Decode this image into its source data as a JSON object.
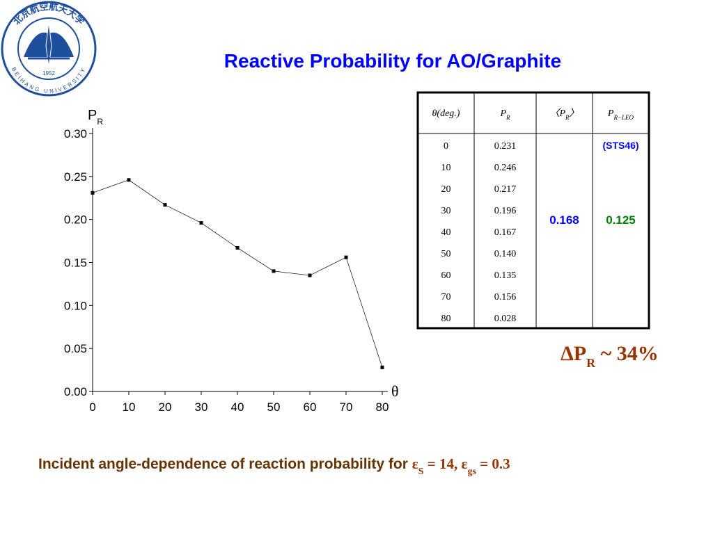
{
  "title": "Reactive Probability for  AO/Graphite",
  "logo": {
    "name_cn": "北京航空航天大学",
    "name_en": "BEIHANG UNIVERSITY",
    "year": "1952"
  },
  "chart_data": {
    "type": "line",
    "y_label": [
      {
        "text": "P"
      },
      {
        "sub": "R"
      }
    ],
    "x_label": "θ",
    "x": [
      0,
      10,
      20,
      30,
      40,
      50,
      60,
      70,
      80
    ],
    "values": [
      0.231,
      0.246,
      0.217,
      0.196,
      0.167,
      0.14,
      0.135,
      0.156,
      0.028
    ],
    "color": "#000000",
    "xlim": [
      0,
      80
    ],
    "xticks": [
      0,
      10,
      20,
      30,
      40,
      50,
      60,
      70,
      80
    ],
    "ylim": [
      0,
      0.3
    ],
    "yticks": [
      {
        "value": 0,
        "label": "0.00"
      },
      {
        "value": 0.05,
        "label": "0.05"
      },
      {
        "value": 0.1,
        "label": "0.10"
      },
      {
        "value": 0.15,
        "label": "0.15"
      },
      {
        "value": 0.2,
        "label": "0.20"
      },
      {
        "value": 0.25,
        "label": "0.25"
      },
      {
        "value": 0.3,
        "label": "0.30"
      }
    ]
  },
  "table": {
    "header": [
      [
        {
          "text": "θ"
        },
        {
          "text": "(deg.)"
        }
      ],
      [
        {
          "text": "P"
        },
        {
          "sub": "R"
        }
      ],
      [
        {
          "text": "〈P"
        },
        {
          "sub": "R"
        },
        {
          "text": "〉"
        }
      ],
      [
        {
          "text": "P"
        },
        {
          "sub": "R−LEO"
        }
      ]
    ],
    "rows": [
      [
        "0",
        "0.231"
      ],
      [
        "10",
        "0.246"
      ],
      [
        "20",
        "0.217"
      ],
      [
        "30",
        "0.196"
      ],
      [
        "40",
        "0.167"
      ],
      [
        "50",
        "0.140"
      ],
      [
        "60",
        "0.135"
      ],
      [
        "70",
        "0.156"
      ],
      [
        "80",
        "0.028"
      ]
    ],
    "mean": "0.168",
    "leo": "0.125",
    "leo_note": "(STS46)"
  },
  "delta": [
    {
      "text": "ΔP"
    },
    {
      "sub": "R"
    },
    {
      "text": " ~ 34%"
    }
  ],
  "caption": {
    "text": "Incident angle-dependence of reaction probability for ",
    "eq": [
      {
        "text": "ε"
      },
      {
        "sub": "S"
      },
      {
        "text": " = 14, ε"
      },
      {
        "sub": "gs"
      },
      {
        "text": " = 0.3"
      }
    ]
  }
}
